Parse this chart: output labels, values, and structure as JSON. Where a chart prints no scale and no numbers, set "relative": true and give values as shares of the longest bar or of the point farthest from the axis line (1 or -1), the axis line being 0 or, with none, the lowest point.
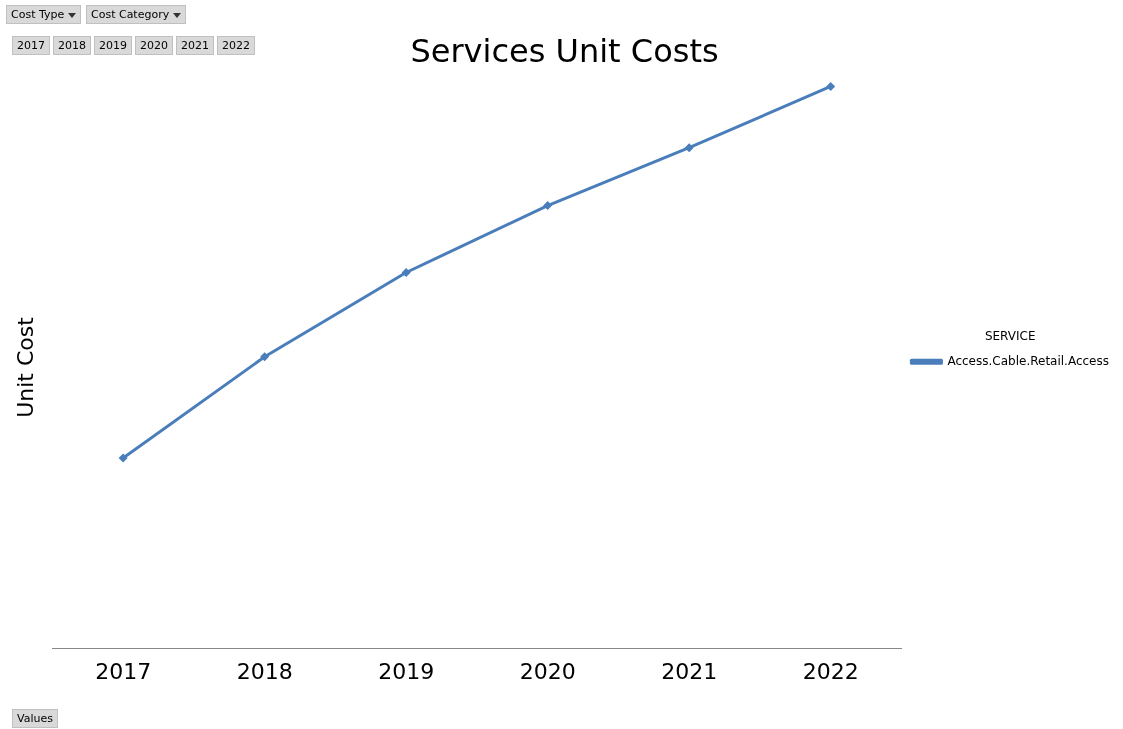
{
  "chart_data": {
    "type": "line",
    "title": "Services Unit Costs",
    "ylabel": "Unit Cost",
    "legend_title": "SERVICE",
    "categories": [
      "2017",
      "2018",
      "2019",
      "2020",
      "2021",
      "2022"
    ],
    "series": [
      {
        "name": "Access.Cable.Retail.Access",
        "color": "#4a7ebb",
        "values": [
          0.339,
          0.519,
          0.669,
          0.788,
          0.891,
          1
        ]
      }
    ],
    "relative": true,
    "marker": "diamond",
    "legend": "right",
    "grid": false,
    "annotations": [
      "Cost Type",
      "Cost Category",
      "2017",
      "2018",
      "2019",
      "2020",
      "2021",
      "2022",
      "Values"
    ]
  }
}
